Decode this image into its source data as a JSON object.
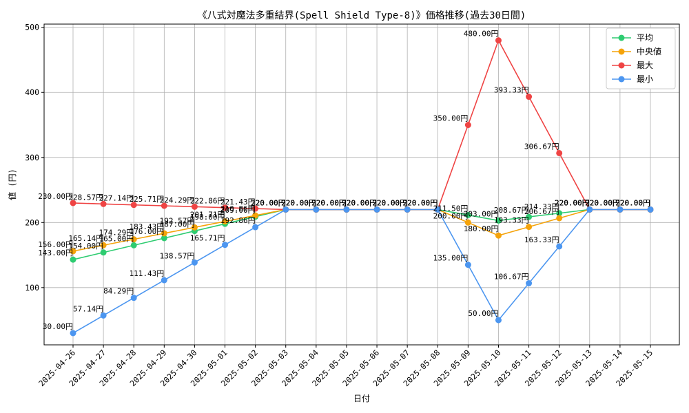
{
  "chart_data": {
    "type": "line",
    "title": "《八式対魔法多重結界(Spell Shield Type-8)》価格推移(過去30日間)",
    "xlabel": "日付",
    "ylabel": "値 (円)",
    "ylim": [
      12,
      505
    ],
    "yticks": [
      100,
      200,
      300,
      400,
      500
    ],
    "grid": true,
    "legend_position": "top-right",
    "value_suffix": "円",
    "categories": [
      "2025-04-26",
      "2025-04-27",
      "2025-04-28",
      "2025-04-29",
      "2025-04-30",
      "2025-05-01",
      "2025-05-02",
      "2025-05-03",
      "2025-05-04",
      "2025-05-05",
      "2025-05-06",
      "2025-05-07",
      "2025-05-08",
      "2025-05-09",
      "2025-05-10",
      "2025-05-11",
      "2025-05-12",
      "2025-05-13",
      "2025-05-14",
      "2025-05-15"
    ],
    "series": [
      {
        "name": "平均",
        "color": "#2ecc71",
        "values": [
          143.0,
          154.0,
          165.0,
          176.0,
          187.0,
          198.0,
          209.0,
          220.0,
          220.0,
          220.0,
          220.0,
          220.0,
          220.0,
          211.5,
          203.0,
          208.67,
          214.33,
          220.0,
          220.0,
          220.0
        ]
      },
      {
        "name": "中央値",
        "color": "#f5a30a",
        "values": [
          156.0,
          165.14,
          174.29,
          183.43,
          192.57,
          201.71,
          210.86,
          220.0,
          220.0,
          220.0,
          220.0,
          220.0,
          220.0,
          200.0,
          180.0,
          193.33,
          206.67,
          220.0,
          220.0,
          220.0
        ]
      },
      {
        "name": "最大",
        "color": "#ef4444",
        "values": [
          230.0,
          228.57,
          227.14,
          225.71,
          224.29,
          222.86,
          221.43,
          220.0,
          220.0,
          220.0,
          220.0,
          220.0,
          220.0,
          350.0,
          480.0,
          393.33,
          306.67,
          220.0,
          220.0,
          220.0
        ]
      },
      {
        "name": "最小",
        "color": "#4c96f0",
        "values": [
          30.0,
          57.14,
          84.29,
          111.43,
          138.57,
          165.71,
          192.86,
          220.0,
          220.0,
          220.0,
          220.0,
          220.0,
          220.0,
          135.0,
          50.0,
          106.67,
          163.33,
          220.0,
          220.0,
          220.0
        ]
      }
    ]
  }
}
